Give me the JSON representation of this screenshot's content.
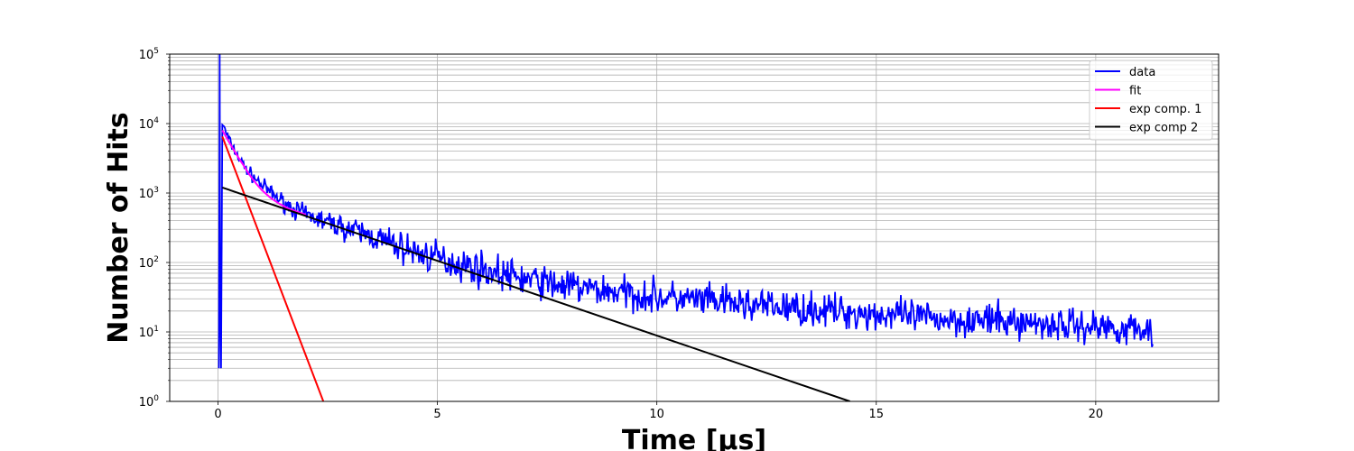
{
  "chart_data": {
    "type": "line",
    "title": "",
    "xlabel": "Time [μs]",
    "ylabel": "Number of Hits",
    "xlim": [
      -1.1,
      22.8
    ],
    "ylim": [
      1,
      100000
    ],
    "yscale": "log",
    "grid": "both (major and minor on y)",
    "legend_position": "top-right",
    "x_ticks": [
      {
        "value": 0,
        "label": "0"
      },
      {
        "value": 5,
        "label": "5"
      },
      {
        "value": 10,
        "label": "10"
      },
      {
        "value": 15,
        "label": "15"
      },
      {
        "value": 20,
        "label": "20"
      }
    ],
    "y_ticks": [
      {
        "value": 1,
        "base": "10",
        "exp": "0"
      },
      {
        "value": 10,
        "base": "10",
        "exp": "1"
      },
      {
        "value": 100,
        "base": "10",
        "exp": "2"
      },
      {
        "value": 1000,
        "base": "10",
        "exp": "3"
      },
      {
        "value": 10000,
        "base": "10",
        "exp": "4"
      },
      {
        "value": 100000,
        "base": "10",
        "exp": "5"
      }
    ],
    "series": [
      {
        "name": "data",
        "color": "#0000ff",
        "x": [
          0.02,
          0.04,
          0.05,
          0.07,
          0.1,
          0.2,
          0.3,
          0.5,
          0.7,
          1.0,
          1.3,
          1.7,
          2.0,
          2.5,
          3.0,
          3.5,
          4.0,
          4.5,
          5.0,
          5.5,
          6.0,
          6.5,
          7.0,
          8.0,
          9.0,
          10.0,
          11.0,
          12.0,
          13.0,
          14.0,
          15.0,
          16.0,
          17.0,
          18.0,
          19.0,
          20.0,
          21.0,
          21.3
        ],
        "y": [
          3,
          100000,
          25,
          3,
          10000,
          7000,
          5000,
          3000,
          2000,
          1300,
          900,
          600,
          480,
          380,
          300,
          240,
          180,
          140,
          115,
          95,
          80,
          68,
          58,
          45,
          38,
          32,
          28,
          25,
          22,
          20,
          18,
          16,
          15,
          14,
          13,
          12,
          11,
          10
        ],
        "noise_amplitude_log10": 0.12
      },
      {
        "name": "fit",
        "color": "#ff00ff",
        "x": [
          0.1,
          0.2,
          0.3,
          0.4,
          0.5,
          0.6,
          0.7,
          0.8,
          0.9,
          1.0,
          1.2,
          1.4,
          1.6,
          1.8,
          2.0
        ],
        "y": [
          8000,
          6200,
          4800,
          3800,
          3000,
          2400,
          1900,
          1550,
          1300,
          1100,
          850,
          700,
          600,
          540,
          490
        ]
      },
      {
        "name": "exp comp. 1",
        "color": "#ff0000",
        "x": [
          0.1,
          2.4
        ],
        "y": [
          6500,
          1
        ]
      },
      {
        "name": "exp comp 2",
        "color": "#000000",
        "x": [
          0.1,
          14.4
        ],
        "y": [
          1200,
          1
        ]
      }
    ]
  }
}
